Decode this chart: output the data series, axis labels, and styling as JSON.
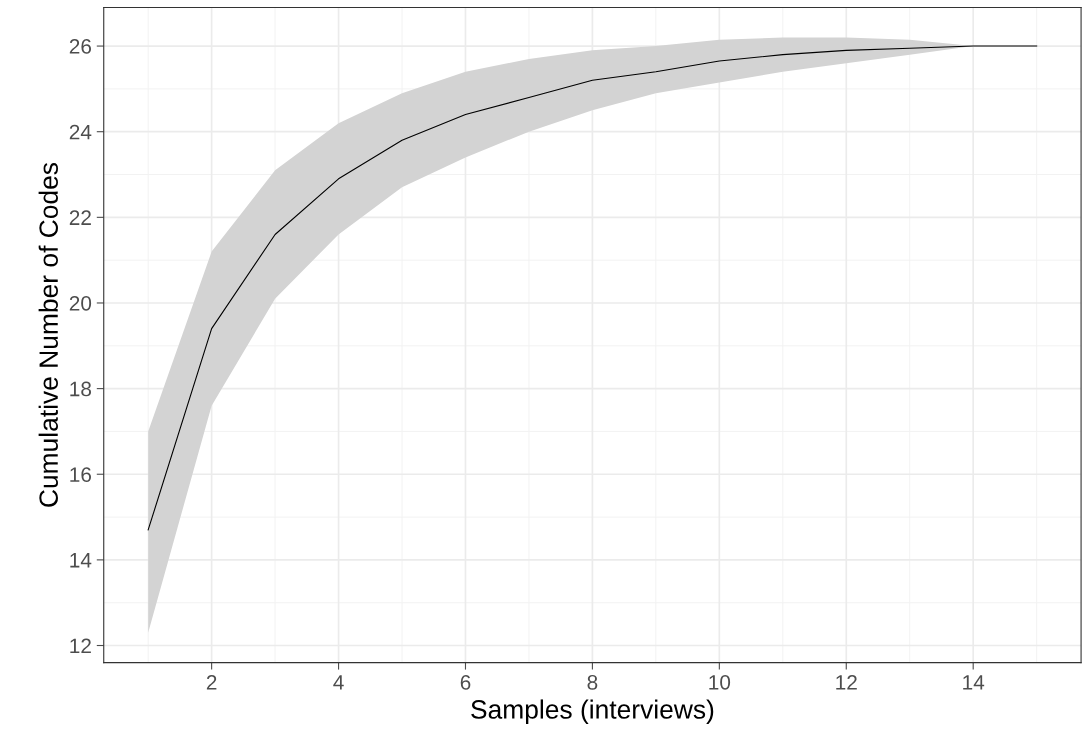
{
  "chart_data": {
    "type": "line",
    "xlabel": "Samples (interviews)",
    "ylabel": "Cumulative Number of Codes",
    "x": [
      1,
      2,
      3,
      4,
      5,
      6,
      7,
      8,
      9,
      10,
      11,
      12,
      13,
      14,
      15
    ],
    "series": [
      {
        "color": "#000000",
        "values": [
          14.7,
          19.4,
          21.6,
          22.9,
          23.8,
          24.4,
          24.8,
          25.2,
          25.4,
          25.65,
          25.8,
          25.9,
          25.95,
          26,
          26
        ],
        "lower": [
          12.3,
          17.6,
          20.1,
          21.6,
          22.7,
          23.4,
          24.0,
          24.5,
          24.9,
          25.15,
          25.4,
          25.6,
          25.8,
          26,
          26
        ],
        "upper": [
          17.0,
          21.2,
          23.1,
          24.2,
          24.9,
          25.4,
          25.7,
          25.9,
          26.0,
          26.15,
          26.2,
          26.2,
          26.15,
          26,
          26
        ]
      }
    ],
    "xlim": [
      0.3,
      15.7
    ],
    "ylim": [
      11.6,
      26.9
    ],
    "xticks": [
      2,
      4,
      6,
      8,
      10,
      12,
      14
    ],
    "yticks": [
      12,
      14,
      16,
      18,
      20,
      22,
      24,
      26
    ],
    "grid": true,
    "marker": "none",
    "line_style": "solid",
    "legend": false
  }
}
